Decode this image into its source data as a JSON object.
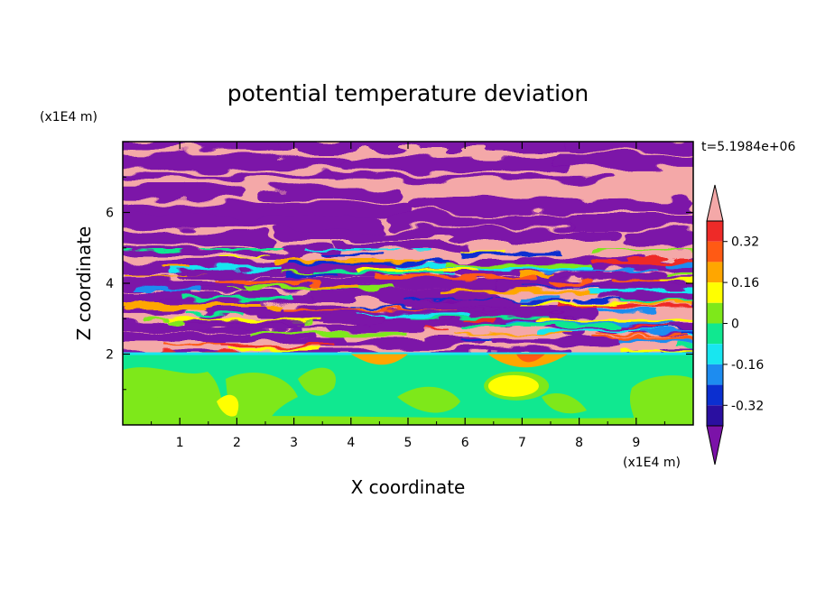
{
  "chart_data": {
    "type": "heatmap",
    "title": "potential temperature deviation",
    "xlabel": "X coordinate",
    "ylabel": "Z coordinate",
    "x_unit": "(x1E4 m)",
    "y_unit": "(x1E4 m)",
    "time_label": "t=5.1984e+06",
    "x_ticks": [
      1,
      2,
      3,
      4,
      5,
      6,
      7,
      8,
      9
    ],
    "y_ticks": [
      2,
      4,
      6
    ],
    "xlim": [
      0,
      10
    ],
    "ylim": [
      0,
      8
    ],
    "colorbar": {
      "ticks": [
        "0.32",
        "0.16",
        "0",
        "-0.16",
        "-0.32"
      ],
      "tick_values": [
        0.32,
        0.16,
        0,
        -0.16,
        -0.32
      ],
      "levels": [
        -0.4,
        -0.32,
        -0.24,
        -0.16,
        -0.08,
        0,
        0.08,
        0.16,
        0.24,
        0.32,
        0.4
      ],
      "colors": [
        "#7b12a8",
        "#2a0fa0",
        "#0b2fd0",
        "#1d8cf0",
        "#18e6f0",
        "#10e890",
        "#7ee81a",
        "#ffff00",
        "#ffa600",
        "#ff5a14",
        "#ee2a28",
        "#f4a8a8"
      ]
    },
    "regions": [
      {
        "name": "lower layer",
        "z_range": [
          0,
          2
        ],
        "dominant_value": 0.04,
        "note": "green / yellow-green near-neutral anomaly with a warm blob near x=7"
      },
      {
        "name": "upper layer",
        "z_range": [
          2,
          8
        ],
        "dominant_value": "alternating +0.4 / -0.4 bands",
        "note": "pink and purple horizontal layers with turbulent mixing at z=2 to 5"
      }
    ]
  }
}
